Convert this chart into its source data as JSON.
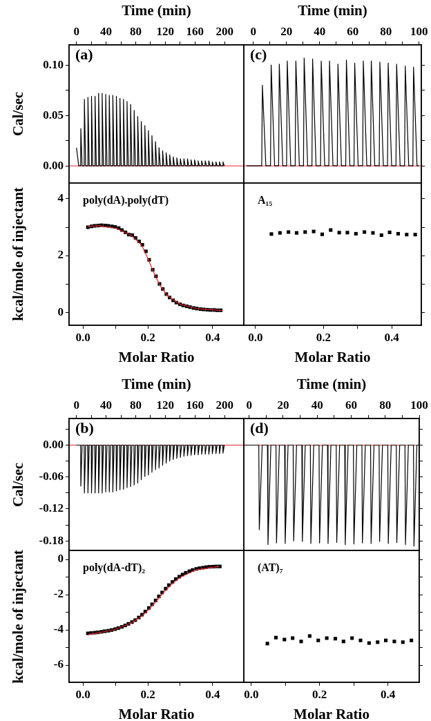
{
  "chart_data": [
    {
      "type": "line",
      "xlabel": "Time (min)",
      "ylabel": "Cal/sec",
      "xlim": [
        -10,
        226
      ],
      "xticks": [
        0,
        {
          "value": 20,
          "label": null
        },
        40,
        {
          "value": 60,
          "label": null
        },
        80,
        {
          "value": 100,
          "label": null
        },
        120,
        {
          "value": 140,
          "label": null
        },
        160,
        {
          "value": 180,
          "label": null
        },
        200
      ],
      "ylim": [
        -0.017,
        0.12
      ],
      "yticks": [
        {
          "value": 0,
          "label": "0.00"
        },
        {
          "value": 0.025,
          "label": null
        },
        0.05,
        {
          "value": 0.075,
          "label": null
        },
        {
          "value": 0.1,
          "label": "0.10"
        }
      ],
      "annotations": [
        "(a)"
      ],
      "ref_lines": [
        {
          "axis": "y",
          "value": 0,
          "color": "#e8242a"
        }
      ],
      "series": [
        {
          "color": "#000000",
          "x": [
            0,
            3,
            5.6,
            5.9,
            7.6,
            10.4,
            10.7,
            12.4,
            15.2,
            15.5,
            17.2,
            20,
            20.3,
            22,
            24.8,
            25.1,
            26.8,
            29.6,
            29.9,
            31.6,
            34.4,
            34.7,
            36.4,
            39.2,
            39.5,
            41.2,
            44,
            44.3,
            46,
            48.8,
            49.1,
            50.8,
            53.6,
            53.9,
            55.6,
            58.4,
            58.7,
            60.4,
            63.2,
            63.5,
            65.2,
            68,
            68.3,
            70,
            72.8,
            73.1,
            74.8,
            77.6,
            77.9,
            79.6,
            82.4,
            82.7,
            84.4,
            87.2,
            87.5,
            89.2,
            92,
            92.3,
            94,
            96.8,
            97.1,
            98.8,
            101.6,
            101.9,
            103.6,
            106.4,
            106.7,
            108.4,
            111.2,
            111.5,
            113.2,
            116,
            116.3,
            118,
            120.8,
            121.1,
            122.8,
            125.6,
            125.9,
            127.6,
            130.4,
            130.7,
            132.4,
            135.2,
            135.5,
            137.2,
            140,
            140.3,
            142,
            144.8,
            145.1,
            146.8,
            149.6,
            149.9,
            151.6,
            154.4,
            154.7,
            156.4,
            159.2,
            159.5,
            161.2,
            164,
            164.3,
            166,
            168.8,
            169.1,
            170.8,
            173.6,
            173.9,
            175.6,
            178.4,
            178.7,
            180.4,
            183.2,
            183.5,
            185.2,
            188,
            188.3,
            190,
            192.8,
            193.1,
            194.8,
            197.6,
            197.9,
            199.6
          ],
          "values": [
            0.018,
            0,
            0,
            0.037,
            0,
            0,
            0.066,
            0,
            0,
            0.068,
            0,
            0,
            0.069,
            0,
            0,
            0.069,
            0,
            0,
            0.072,
            0,
            0,
            0.072,
            0,
            0,
            0.071,
            0,
            0,
            0.07,
            0,
            0,
            0.07,
            0,
            0,
            0.069,
            0,
            0,
            0.067,
            0,
            0,
            0.066,
            0,
            0,
            0.064,
            0,
            0,
            0.061,
            0,
            0,
            0.055,
            0,
            0,
            0.049,
            0,
            0,
            0.044,
            0,
            0,
            0.04,
            0,
            0,
            0.035,
            0,
            0,
            0.03,
            0,
            0,
            0.024,
            0,
            0,
            0.018,
            0,
            0,
            0.015,
            0,
            0,
            0.013,
            0,
            0,
            0.011,
            0,
            0,
            0.009,
            0,
            0,
            0.008,
            0,
            0,
            0.007,
            0,
            0,
            0.007,
            0,
            0,
            0.007,
            0,
            0,
            0.006,
            0,
            0,
            0.006,
            0,
            0,
            0.005,
            0,
            0,
            0.005,
            0,
            0,
            0.005,
            0,
            0,
            0.005,
            0,
            0,
            0.004,
            0,
            0,
            0.004,
            0,
            0,
            0.004,
            0,
            0,
            0.004,
            0
          ]
        }
      ]
    },
    {
      "type": "line",
      "xlabel": "Time (min)",
      "xlim": [
        -5.7,
        101.4
      ],
      "xticks": [
        0,
        {
          "value": 10,
          "label": null
        },
        20,
        {
          "value": 30,
          "label": null
        },
        40,
        {
          "value": 50,
          "label": null
        },
        60,
        {
          "value": 70,
          "label": null
        },
        80,
        {
          "value": 90,
          "label": null
        },
        100
      ],
      "ylim": [
        -0.017,
        0.12
      ],
      "yticks": [
        0,
        {
          "value": 0.025,
          "label": null
        },
        0.05,
        {
          "value": 0.075,
          "label": null
        },
        0.1
      ],
      "tick_labels": "x",
      "annotations": [
        "(c)"
      ],
      "ref_lines": [
        {
          "axis": "y",
          "value": 0,
          "color": "#e8242a"
        }
      ],
      "series": [
        {
          "color": "#000000",
          "x": [
            -4,
            5.1,
            5.5,
            7.6,
            10.4,
            10.8,
            12.9,
            15.3,
            15.7,
            17.8,
            20.1,
            20.5,
            22.6,
            25.3,
            25.7,
            27.8,
            30.3,
            30.7,
            32.8,
            35.4,
            35.8,
            37.9,
            40.6,
            41,
            43.1,
            45.6,
            46,
            48.1,
            50.7,
            51.1,
            53.2,
            55.8,
            56.2,
            58.3,
            60.8,
            61.2,
            63.3,
            66,
            66.4,
            68.5,
            70.8,
            71.2,
            73.3,
            76,
            76.4,
            78.5,
            81,
            81.4,
            83.5,
            86.1,
            86.5,
            88.6,
            91.3,
            91.7,
            93.8,
            96.3,
            96.7,
            98.8,
            100
          ],
          "values": [
            0,
            0,
            0.08,
            0,
            0,
            0.1,
            0,
            0,
            0.101,
            0,
            0,
            0.104,
            0,
            0,
            0.104,
            0,
            0,
            0.107,
            0,
            0,
            0.106,
            0,
            0,
            0.104,
            0,
            0,
            0.104,
            0,
            0,
            0.101,
            0,
            0,
            0.105,
            0,
            0,
            0.102,
            0,
            0,
            0.104,
            0,
            0,
            0.104,
            0,
            0,
            0.103,
            0,
            0,
            0.102,
            0,
            0,
            0.101,
            0,
            0,
            0.099,
            0,
            0,
            0.098,
            0,
            0
          ]
        }
      ]
    },
    {
      "type": "scatter",
      "xlabel": "Molar Ratio",
      "ylabel": "kcal/mole of injectant",
      "marker": "square",
      "xlim": [
        -0.043,
        0.496
      ],
      "xticks": [
        {
          "value": 0,
          "label": "0.0"
        },
        {
          "value": 0.1,
          "label": null
        },
        0.2,
        {
          "value": 0.3,
          "label": null
        },
        0.4
      ],
      "ylim": [
        -0.46,
        4.56
      ],
      "yticks": [
        0,
        {
          "value": 1,
          "label": null
        },
        2,
        {
          "value": 3,
          "label": null
        },
        4
      ],
      "annotations": [
        "poly(dA).poly(dT)"
      ],
      "series": [
        {
          "color": "#000000",
          "x": [
            0.015,
            0.026,
            0.036,
            0.047,
            0.057,
            0.068,
            0.078,
            0.089,
            0.099,
            0.11,
            0.12,
            0.131,
            0.141,
            0.152,
            0.162,
            0.173,
            0.183,
            0.194,
            0.204,
            0.215,
            0.225,
            0.236,
            0.246,
            0.257,
            0.267,
            0.278,
            0.288,
            0.299,
            0.309,
            0.32,
            0.33,
            0.341,
            0.351,
            0.362,
            0.372,
            0.383,
            0.393,
            0.404,
            0.414,
            0.425
          ],
          "values": [
            3,
            3.03,
            3.05,
            3.06,
            3.07,
            3.06,
            3.05,
            3.03,
            3.01,
            2.97,
            2.9,
            2.82,
            2.74,
            2.72,
            2.62,
            2.5,
            2.38,
            2.15,
            1.85,
            1.5,
            1.27,
            1,
            0.82,
            0.64,
            0.52,
            0.42,
            0.34,
            0.28,
            0.24,
            0.21,
            0.18,
            0.15,
            0.13,
            0.11,
            0.1,
            0.09,
            0.08,
            0.08,
            0.07,
            0.07
          ]
        },
        {
          "type": "line",
          "color": "#e8242a",
          "marker": "none",
          "x": [
            0.015,
            0.05,
            0.1,
            0.15,
            0.18,
            0.2,
            0.22,
            0.24,
            0.26,
            0.3,
            0.35,
            0.43
          ],
          "values": [
            3.03,
            3.05,
            2.97,
            2.7,
            2.38,
            1.9,
            1.35,
            0.9,
            0.58,
            0.28,
            0.13,
            0.06
          ]
        }
      ]
    },
    {
      "type": "scatter",
      "xlabel": "Molar Ratio",
      "marker": "square",
      "xlim": [
        -0.034,
        0.487
      ],
      "xticks": [
        {
          "value": 0,
          "label": "0.0"
        },
        {
          "value": 0.1,
          "label": null
        },
        0.2,
        {
          "value": 0.3,
          "label": null
        },
        0.4
      ],
      "ylim": [
        -0.46,
        4.56
      ],
      "yticks": [
        0,
        {
          "value": 1,
          "label": null
        },
        2,
        {
          "value": 3,
          "label": null
        },
        4
      ],
      "tick_labels": "x",
      "annotations": [
        "A₁₅"
      ],
      "series": [
        {
          "color": "#000000",
          "x": [
            0.047,
            0.072,
            0.097,
            0.121,
            0.146,
            0.171,
            0.196,
            0.221,
            0.246,
            0.27,
            0.295,
            0.32,
            0.345,
            0.37,
            0.394,
            0.419,
            0.444,
            0.469
          ],
          "values": [
            2.76,
            2.8,
            2.83,
            2.8,
            2.83,
            2.85,
            2.75,
            2.9,
            2.81,
            2.81,
            2.77,
            2.83,
            2.8,
            2.72,
            2.82,
            2.77,
            2.74,
            2.74
          ]
        }
      ]
    },
    {
      "type": "line",
      "xlabel": "Time (min)",
      "ylabel": "Cal/sec",
      "xlim": [
        -10,
        226
      ],
      "xticks": [
        0,
        {
          "value": 20,
          "label": null
        },
        40,
        {
          "value": 60,
          "label": null
        },
        80,
        {
          "value": 100,
          "label": null
        },
        120,
        {
          "value": 140,
          "label": null
        },
        160,
        {
          "value": 180,
          "label": null
        },
        200
      ],
      "ylim": [
        -0.198,
        0.05
      ],
      "yticks": [
        {
          "value": 0.03,
          "label": null
        },
        {
          "value": 0,
          "label": "0.00"
        },
        {
          "value": -0.03,
          "label": null
        },
        -0.06,
        {
          "value": -0.09,
          "label": null
        },
        -0.12,
        {
          "value": -0.15,
          "label": null
        },
        -0.18
      ],
      "annotations": [
        "(b)"
      ],
      "ref_lines": [
        {
          "axis": "y",
          "value": 0,
          "color": "#e8242a"
        }
      ],
      "series": [
        {
          "color": "#000000",
          "x": [
            0,
            5.6,
            5.9,
            7.6,
            10.4,
            10.7,
            12.4,
            15.2,
            15.5,
            17.2,
            20,
            20.3,
            22,
            24.8,
            25.1,
            26.8,
            29.6,
            29.9,
            31.6,
            34.4,
            34.7,
            36.4,
            39.2,
            39.5,
            41.2,
            44,
            44.3,
            46,
            48.8,
            49.1,
            50.8,
            53.6,
            53.9,
            55.6,
            58.4,
            58.7,
            60.4,
            63.2,
            63.5,
            65.2,
            68,
            68.3,
            70,
            72.8,
            73.1,
            74.8,
            77.6,
            77.9,
            79.6,
            82.4,
            82.7,
            84.4,
            87.2,
            87.5,
            89.2,
            92,
            92.3,
            94,
            96.8,
            97.1,
            98.8,
            101.6,
            101.9,
            103.6,
            106.4,
            106.7,
            108.4,
            111.2,
            111.5,
            113.2,
            116,
            116.3,
            118,
            120.8,
            121.1,
            122.8,
            125.6,
            125.9,
            127.6,
            130.4,
            130.7,
            132.4,
            135.2,
            135.5,
            137.2,
            140,
            140.3,
            142,
            144.8,
            145.1,
            146.8,
            149.6,
            149.9,
            151.6,
            154.4,
            154.7,
            156.4,
            159.2,
            159.5,
            161.2,
            164,
            164.3,
            166,
            168.8,
            169.1,
            170.8,
            173.6,
            173.9,
            175.6,
            178.4,
            178.7,
            180.4,
            183.2,
            183.5,
            185.2,
            188,
            188.3,
            190,
            192.8,
            193.1,
            194.8,
            197.6,
            197.9,
            199.6
          ],
          "values": [
            0,
            0,
            -0.077,
            0,
            0,
            -0.09,
            0,
            0,
            -0.09,
            0,
            0,
            -0.09,
            0,
            0,
            -0.09,
            0,
            0,
            -0.09,
            0,
            0,
            -0.09,
            0,
            0,
            -0.088,
            0,
            0,
            -0.088,
            0,
            0,
            -0.088,
            0,
            0,
            -0.086,
            0,
            0,
            -0.084,
            0,
            0,
            -0.083,
            0,
            0,
            -0.08,
            0,
            0,
            -0.078,
            0,
            0,
            -0.075,
            0,
            0,
            -0.071,
            0,
            0,
            -0.065,
            0,
            0,
            -0.059,
            0,
            0,
            -0.056,
            0,
            0,
            -0.051,
            0,
            0,
            -0.046,
            0,
            0,
            -0.043,
            0,
            0,
            -0.038,
            0,
            0,
            -0.034,
            0,
            0,
            -0.03,
            0,
            0,
            -0.027,
            0,
            0,
            -0.025,
            0,
            0,
            -0.023,
            0,
            0,
            -0.021,
            0,
            0,
            -0.02,
            0,
            0,
            -0.019,
            0,
            0,
            -0.018,
            0,
            0,
            -0.018,
            0,
            0,
            -0.017,
            0,
            0,
            -0.017,
            0,
            0,
            -0.017,
            0,
            0,
            -0.016,
            0,
            0,
            -0.016,
            0,
            0,
            -0.016,
            0,
            0,
            -0.015,
            0
          ]
        }
      ]
    },
    {
      "type": "line",
      "xlabel": "Time (min)",
      "xlim": [
        -3.1,
        100
      ],
      "xticks": [
        0,
        {
          "value": 10,
          "label": null
        },
        20,
        {
          "value": 30,
          "label": null
        },
        40,
        {
          "value": 50,
          "label": null
        },
        60,
        {
          "value": 70,
          "label": null
        },
        80,
        {
          "value": 90,
          "label": null
        },
        100
      ],
      "ylim": [
        -0.198,
        0.05
      ],
      "yticks": [
        {
          "value": 0.03,
          "label": null
        },
        0,
        {
          "value": -0.03,
          "label": null
        },
        -0.06,
        {
          "value": -0.09,
          "label": null
        },
        -0.12,
        {
          "value": -0.15,
          "label": null
        },
        -0.18
      ],
      "tick_labels": "x",
      "annotations": [
        "(d)"
      ],
      "ref_lines": [
        {
          "axis": "y",
          "value": 0,
          "color": "#e8242a"
        }
      ],
      "series": [
        {
          "color": "#000000",
          "x": [
            -3,
            5.7,
            6,
            7.7,
            10.8,
            11.1,
            12.8,
            15.8,
            16.1,
            17.8,
            20.9,
            21.2,
            22.9,
            25.9,
            26.2,
            27.9,
            31,
            31.3,
            33,
            36,
            36.3,
            38,
            41.1,
            41.4,
            43.1,
            46.1,
            46.4,
            48.1,
            51.2,
            51.5,
            53.2,
            56.2,
            56.5,
            58.2,
            61.3,
            61.6,
            63.3,
            66.3,
            66.6,
            68.3,
            71.4,
            71.7,
            73.4,
            76.4,
            76.7,
            78.4,
            81.5,
            81.8,
            83.5,
            86.5,
            86.8,
            88.5,
            91.6,
            91.9,
            93.6,
            96.6,
            96.9,
            98.6,
            99.8
          ],
          "values": [
            0,
            0,
            -0.159,
            0,
            0,
            -0.187,
            0,
            0,
            -0.184,
            0,
            0,
            -0.185,
            0,
            0,
            -0.18,
            0,
            0,
            -0.181,
            0,
            0,
            -0.185,
            0,
            0,
            -0.184,
            0,
            0,
            -0.185,
            0,
            0,
            -0.183,
            0,
            0,
            -0.187,
            0,
            0,
            -0.186,
            0,
            0,
            -0.184,
            0,
            0,
            -0.185,
            0,
            0,
            -0.181,
            0,
            0,
            -0.185,
            0,
            0,
            -0.183,
            0,
            0,
            -0.187,
            0,
            0,
            -0.19,
            0,
            0
          ]
        }
      ]
    },
    {
      "type": "scatter",
      "xlabel": "Molar Ratio",
      "ylabel": "kcal/mole of injectant",
      "marker": "square",
      "xlim": [
        -0.043,
        0.496
      ],
      "xticks": [
        {
          "value": 0,
          "label": "0.0"
        },
        {
          "value": 0.1,
          "label": null
        },
        0.2,
        {
          "value": 0.3,
          "label": null
        },
        0.4
      ],
      "ylim": [
        -6.98,
        0.51
      ],
      "yticks": [
        0,
        {
          "value": -1,
          "label": null
        },
        -2,
        {
          "value": -3,
          "label": null
        },
        -4,
        {
          "value": -5,
          "label": null
        },
        -6
      ],
      "annotations": [
        "poly(dA-dT)₂"
      ],
      "series": [
        {
          "color": "#000000",
          "x": [
            0.015,
            0.025,
            0.036,
            0.046,
            0.057,
            0.067,
            0.078,
            0.088,
            0.099,
            0.109,
            0.12,
            0.13,
            0.14,
            0.151,
            0.161,
            0.172,
            0.182,
            0.192,
            0.203,
            0.213,
            0.224,
            0.234,
            0.244,
            0.255,
            0.265,
            0.276,
            0.286,
            0.297,
            0.307,
            0.317,
            0.328,
            0.338,
            0.349,
            0.359,
            0.37,
            0.38,
            0.39,
            0.401,
            0.411,
            0.422
          ],
          "values": [
            -4.2,
            -4.18,
            -4.16,
            -4.14,
            -4.11,
            -4.08,
            -4.05,
            -4.01,
            -3.96,
            -3.9,
            -3.83,
            -3.75,
            -3.66,
            -3.56,
            -3.45,
            -3.3,
            -3.14,
            -2.96,
            -2.76,
            -2.55,
            -2.33,
            -2.1,
            -1.88,
            -1.66,
            -1.46,
            -1.28,
            -1.12,
            -0.98,
            -0.86,
            -0.76,
            -0.67,
            -0.6,
            -0.54,
            -0.5,
            -0.47,
            -0.44,
            -0.42,
            -0.41,
            -0.4,
            -0.4
          ]
        },
        {
          "type": "line",
          "color": "#e8242a",
          "marker": "none",
          "x": [
            0.015,
            0.05,
            0.1,
            0.15,
            0.18,
            0.2,
            0.22,
            0.25,
            0.28,
            0.3,
            0.35,
            0.42
          ],
          "values": [
            -4.27,
            -4.16,
            -3.97,
            -3.6,
            -3.24,
            -2.9,
            -2.5,
            -1.85,
            -1.3,
            -1.02,
            -0.58,
            -0.4
          ]
        }
      ]
    },
    {
      "type": "scatter",
      "xlabel": "Molar Ratio",
      "marker": "square",
      "xlim": [
        -0.022,
        0.492
      ],
      "xticks": [
        {
          "value": 0,
          "label": "0.0"
        },
        {
          "value": 0.1,
          "label": null
        },
        0.2,
        {
          "value": 0.3,
          "label": null
        },
        0.4
      ],
      "ylim": [
        -6.98,
        0.51
      ],
      "yticks": [
        0,
        {
          "value": -1,
          "label": null
        },
        -2,
        {
          "value": -3,
          "label": null
        },
        -4,
        {
          "value": -5,
          "label": null
        },
        -6
      ],
      "tick_labels": "x",
      "annotations": [
        "(AT)₇"
      ],
      "series": [
        {
          "color": "#000000",
          "x": [
            0.047,
            0.072,
            0.097,
            0.121,
            0.146,
            0.171,
            0.196,
            0.221,
            0.246,
            0.27,
            0.295,
            0.32,
            0.345,
            0.37,
            0.394,
            0.419,
            0.444,
            0.469
          ],
          "values": [
            -4.78,
            -4.44,
            -4.55,
            -4.47,
            -4.66,
            -4.35,
            -4.6,
            -4.47,
            -4.5,
            -4.66,
            -4.47,
            -4.6,
            -4.75,
            -4.7,
            -4.6,
            -4.66,
            -4.7,
            -4.6
          ]
        }
      ]
    }
  ]
}
